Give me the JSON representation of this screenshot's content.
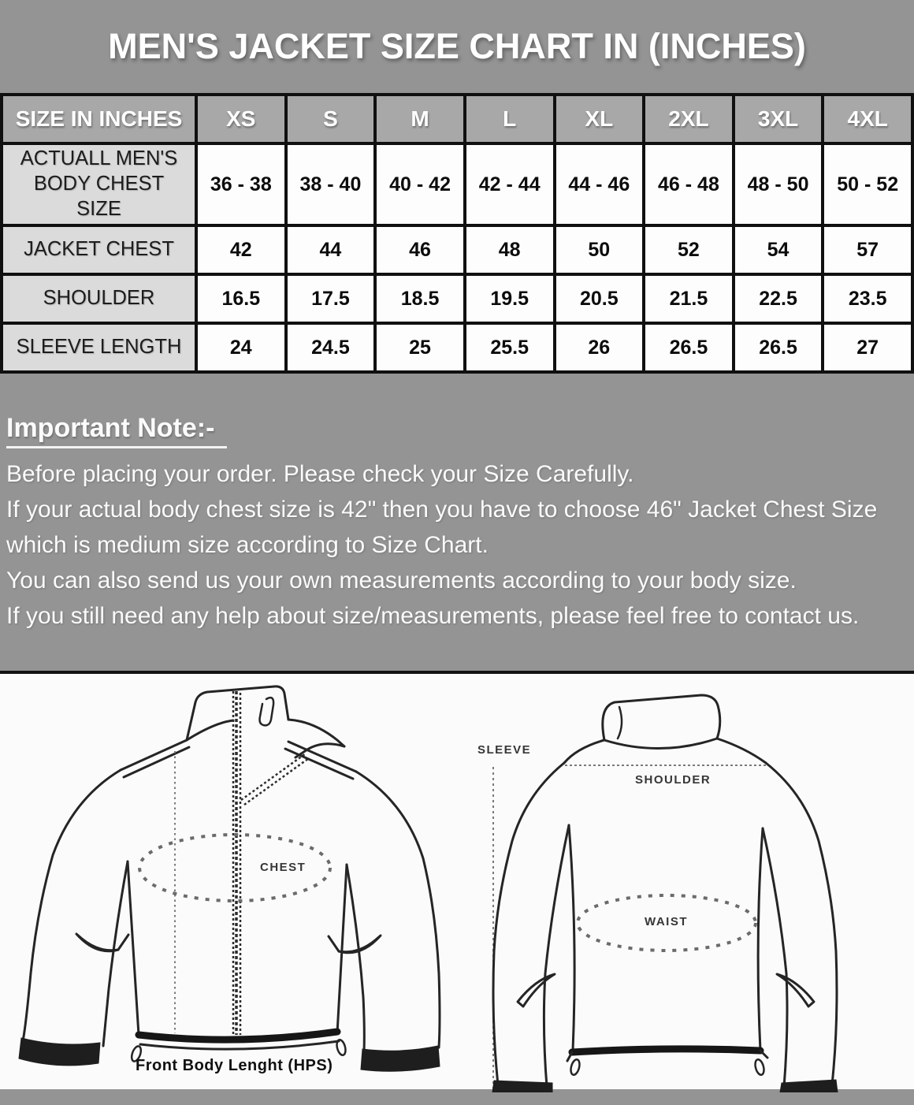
{
  "title": "MEN'S JACKET SIZE CHART IN (INCHES)",
  "size_table": {
    "header": [
      "SIZE IN INCHES",
      "XS",
      "S",
      "M",
      "L",
      "XL",
      "2XL",
      "3XL",
      "4XL"
    ],
    "rows": [
      {
        "label": "ACTUALL MEN'S BODY CHEST SIZE",
        "values": [
          "36 - 38",
          "38 - 40",
          "40 - 42",
          "42 - 44",
          "44 - 46",
          "46 - 48",
          "48 - 50",
          "50 - 52"
        ]
      },
      {
        "label": "JACKET CHEST",
        "values": [
          "42",
          "44",
          "46",
          "48",
          "50",
          "52",
          "54",
          "57"
        ]
      },
      {
        "label": "SHOULDER",
        "values": [
          "16.5",
          "17.5",
          "18.5",
          "19.5",
          "20.5",
          "21.5",
          "22.5",
          "23.5"
        ]
      },
      {
        "label": "SLEEVE LENGTH",
        "values": [
          "24",
          "24.5",
          "25",
          "25.5",
          "26",
          "26.5",
          "26.5",
          "27"
        ]
      }
    ]
  },
  "note": {
    "heading": "Important Note:-",
    "lines": [
      "Before placing your order. Please check your Size Carefully.",
      "If your actual body chest size is 42\" then you have to choose 46\" Jacket Chest Size which is medium size according to Size Chart.",
      "You can also send us your own measurements according to your body size.",
      "If you still need any help about size/measurements, please feel free to contact us."
    ]
  },
  "diagram": {
    "front": {
      "chest_label": "CHEST",
      "bottom_label": "Front Body Lenght (HPS)"
    },
    "back": {
      "sleeve_label": "SLEEVE",
      "shoulder_label": "SHOULDER",
      "waist_label": "WAIST"
    }
  },
  "colors": {
    "page_gray": "#949494",
    "header_row_gray": "#a8a8a8",
    "label_cell_gray": "#dbdbdb",
    "cell_white": "#fdfdfd",
    "border_black": "#101010",
    "text_white": "#ffffff",
    "diagram_bg": "#fbfbfb"
  }
}
